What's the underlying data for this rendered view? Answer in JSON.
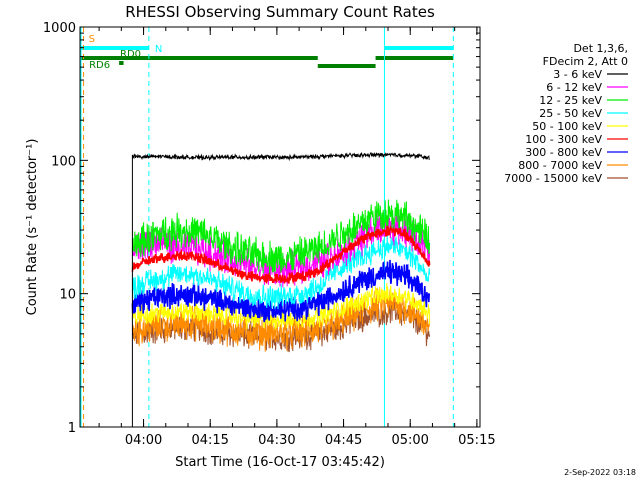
{
  "chart_data": {
    "type": "line",
    "title": "RHESSI Observing Summary Count Rates",
    "xlabel": "Start Time (16-Oct-17 03:45:42)",
    "ylabel": "Count Rate (s⁻¹ detector⁻¹)",
    "y_scale": "log",
    "ylim": [
      1,
      1000
    ],
    "x_unit": "minutes since 03:45:42",
    "xlim": [
      0,
      90
    ],
    "x_ticks": [
      {
        "label": "04:00",
        "value": 14.3
      },
      {
        "label": "04:15",
        "value": 29.3
      },
      {
        "label": "04:30",
        "value": 44.3
      },
      {
        "label": "04:45",
        "value": 59.3
      },
      {
        "label": "05:00",
        "value": 74.3
      },
      {
        "label": "05:15",
        "value": 89.3
      }
    ],
    "y_ticks": [
      {
        "label": "1",
        "value": 1
      },
      {
        "label": "10",
        "value": 10
      },
      {
        "label": "100",
        "value": 100
      },
      {
        "label": "1000",
        "value": 1000
      }
    ],
    "legend": {
      "position": "right",
      "header": [
        "Det 1,3,6,",
        "FDecim 2, Att 0"
      ]
    },
    "x": [
      11.8,
      14,
      18,
      22,
      26,
      30,
      34,
      38,
      42,
      46,
      50,
      54,
      58,
      62,
      66,
      70,
      73,
      76,
      78.7
    ],
    "series": [
      {
        "name": "3 - 6 keV",
        "color": "#000000",
        "values": [
          108,
          106,
          107,
          106,
          105,
          105,
          106,
          105,
          106,
          105,
          106,
          107,
          108,
          109,
          110,
          110,
          109,
          108,
          104
        ]
      },
      {
        "name": "6 - 12 keV",
        "color": "#ff00ff",
        "values": [
          21,
          23,
          24,
          22,
          22,
          20,
          18,
          16,
          15,
          15,
          16,
          17,
          20,
          24,
          30,
          32,
          30,
          25,
          20
        ]
      },
      {
        "name": "12 - 25 keV",
        "color": "#00ee00",
        "values": [
          22,
          25,
          28,
          30,
          29,
          26,
          22,
          20,
          19,
          18,
          20,
          22,
          27,
          32,
          38,
          40,
          37,
          30,
          25
        ]
      },
      {
        "name": "25 - 50 keV",
        "color": "#00ffff",
        "values": [
          11,
          12,
          13,
          14,
          14,
          12.5,
          11,
          10,
          9.5,
          9.5,
          10,
          11.5,
          15,
          18,
          21,
          23,
          21,
          17,
          12
        ]
      },
      {
        "name": "50 - 100 keV",
        "color": "#ffff00",
        "values": [
          6.5,
          7,
          7.2,
          7.4,
          7.3,
          7,
          6.8,
          6.5,
          6.4,
          6.4,
          6.5,
          6.8,
          7.5,
          8.5,
          9.5,
          10,
          9.5,
          8.5,
          7
        ]
      },
      {
        "name": "100 - 300 keV",
        "color": "#ff0000",
        "values": [
          15.5,
          17,
          18.5,
          19.5,
          19,
          17,
          15,
          13.5,
          13,
          13,
          13.5,
          15,
          19,
          24,
          28,
          30,
          28,
          22,
          16.5
        ]
      },
      {
        "name": "300 - 800 keV",
        "color": "#0000ff",
        "values": [
          8.2,
          8.8,
          9.5,
          9.8,
          9.7,
          9,
          8.4,
          7.8,
          7.5,
          7.6,
          7.9,
          8.5,
          10,
          12,
          13.5,
          14.5,
          13.5,
          11.5,
          9
        ]
      },
      {
        "name": "800 - 7000 keV",
        "color": "#ff8c00",
        "values": [
          5.2,
          5.5,
          5.8,
          6,
          6,
          5.7,
          5.4,
          5.2,
          5.1,
          5.1,
          5.2,
          5.4,
          6,
          7,
          8,
          8.5,
          8,
          6.8,
          5.5
        ]
      },
      {
        "name": "7000 - 15000 keV",
        "color": "#a0522d",
        "values": [
          4.8,
          5,
          5.3,
          5.5,
          5.5,
          5.2,
          5,
          4.8,
          4.7,
          4.7,
          4.8,
          5,
          5.5,
          6.3,
          7,
          7.5,
          7,
          6.1,
          5
        ]
      }
    ],
    "status_bars": [
      {
        "label": "S",
        "color": "#ff8c00",
        "x_start": 0.6,
        "x_end": 0.8
      },
      {
        "label": "N",
        "color": "#00ffff",
        "x_start": 0,
        "x_end": 15.5
      },
      {
        "label": "",
        "color": "#00ffff",
        "x_start": 68.5,
        "x_end": 84
      },
      {
        "label": "RD0",
        "color": "#008000",
        "x_start": 0,
        "x_end": 53.5
      },
      {
        "label": "",
        "color": "#008000",
        "x_start": 66.5,
        "x_end": 84
      },
      {
        "label": "RD6",
        "color": "#008000",
        "x_start": 8.8,
        "x_end": 9.8
      },
      {
        "label": "",
        "color": "#008000",
        "x_start": 53.5,
        "x_end": 66.5
      }
    ],
    "vertical_lines": [
      {
        "color": "#00ffff",
        "style": "solid",
        "x": 0
      },
      {
        "color": "#ff8c00",
        "style": "dashed",
        "x": 0.8
      },
      {
        "color": "#00ffff",
        "style": "dashed",
        "x": 15.5
      },
      {
        "color": "#00ffff",
        "style": "solid",
        "x": 68.5
      },
      {
        "color": "#00ffff",
        "style": "dashed",
        "x": 84
      }
    ],
    "footer": "2-Sep-2022 03:18"
  }
}
